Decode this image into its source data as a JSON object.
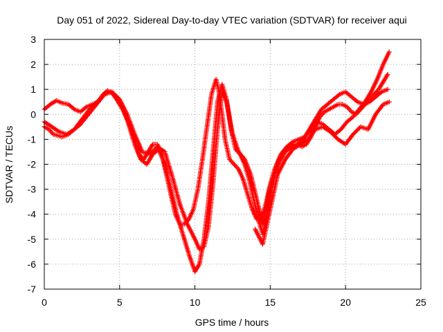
{
  "chart_data": {
    "type": "scatter",
    "title": "Day 051 of 2022, Sidereal Day-to-day VTEC variation (SDTVAR) for receiver aqui",
    "xlabel": "GPS time / hours",
    "ylabel": "SDTVAR / TECUs",
    "xlim": [
      0,
      25
    ],
    "ylim": [
      -7,
      3
    ],
    "xticks": [
      "0",
      "5",
      "10",
      "15",
      "20",
      "25"
    ],
    "yticks": [
      "3",
      "2",
      "1",
      "0",
      "-1",
      "-2",
      "-3",
      "-4",
      "-5",
      "-6",
      "-7"
    ],
    "grid": true,
    "marker": "plus",
    "color": "#ff0000",
    "series": [
      {
        "x": [
          0.0,
          0.3,
          0.6,
          0.9,
          1.2,
          1.6,
          2.0,
          2.4,
          2.8,
          3.2,
          3.6,
          3.9,
          4.2,
          4.5,
          4.8,
          5.2,
          5.6,
          6.0,
          6.3,
          6.6,
          6.9,
          7.2,
          7.5,
          7.8,
          8.1,
          8.4,
          8.7,
          9.0,
          9.3,
          9.6,
          9.9,
          10.2,
          10.5,
          10.8,
          11.1,
          11.4,
          11.6,
          11.8,
          12.0,
          12.3,
          12.6,
          12.9,
          13.2,
          13.5,
          13.8,
          14.1,
          14.4,
          14.7,
          15.0,
          15.3,
          15.6,
          15.9,
          16.2,
          16.5,
          16.8,
          17.1,
          17.4,
          17.7,
          18.0,
          18.3,
          18.6,
          18.9,
          19.2,
          19.5,
          19.8,
          20.1,
          20.4,
          20.7,
          21.0,
          21.3,
          21.6,
          21.9,
          22.2,
          22.5,
          22.8
        ],
        "y": [
          -0.5,
          -0.6,
          -0.8,
          -0.85,
          -0.9,
          -0.8,
          -0.6,
          -0.4,
          -0.1,
          0.2,
          0.5,
          0.8,
          0.95,
          0.85,
          0.6,
          0.2,
          -0.3,
          -1.0,
          -1.6,
          -1.8,
          -1.5,
          -1.2,
          -1.2,
          -1.6,
          -2.4,
          -3.2,
          -4.0,
          -4.4,
          -4.4,
          -4.2,
          -3.8,
          -3.0,
          -1.8,
          -0.5,
          0.8,
          1.4,
          0.9,
          0.0,
          -1.0,
          -1.8,
          -2.0,
          -2.2,
          -2.6,
          -3.2,
          -3.8,
          -4.2,
          -4.2,
          -3.6,
          -2.8,
          -2.2,
          -1.8,
          -1.5,
          -1.3,
          -1.2,
          -1.2,
          -1.3,
          -1.2,
          -0.9,
          -0.5,
          -0.1,
          0.1,
          0.2,
          0.3,
          0.4,
          0.4,
          0.3,
          0.1,
          0.0,
          0.2,
          0.4,
          0.6,
          0.8,
          1.0,
          1.3,
          1.6
        ]
      },
      {
        "x": [
          0.0,
          0.4,
          0.8,
          1.2,
          1.6,
          2.0,
          2.4,
          2.8,
          3.2,
          3.6,
          4.0,
          4.4,
          4.8,
          5.2,
          5.6,
          6.0,
          6.4,
          6.8,
          7.2,
          7.6,
          8.0,
          8.4,
          8.8,
          9.2,
          9.6,
          10.0,
          10.3,
          10.6,
          10.9,
          11.2,
          11.5,
          11.8,
          12.1,
          12.4,
          12.7,
          13.0,
          13.3,
          13.6,
          13.9,
          14.2,
          14.5,
          14.8,
          15.1,
          15.4,
          15.7,
          16.0,
          16.4,
          16.8,
          17.2,
          17.6,
          18.0,
          18.4,
          18.8,
          19.2,
          19.6,
          20.0,
          20.4,
          20.8,
          21.2,
          21.6,
          22.0,
          22.4,
          22.8
        ],
        "y": [
          0.2,
          0.4,
          0.55,
          0.45,
          0.4,
          0.2,
          0.1,
          0.3,
          0.4,
          0.5,
          0.8,
          0.9,
          0.7,
          0.3,
          -0.4,
          -1.2,
          -1.8,
          -2.0,
          -1.6,
          -1.4,
          -2.0,
          -3.0,
          -4.0,
          -4.8,
          -5.6,
          -6.3,
          -6.0,
          -5.0,
          -3.5,
          -1.5,
          0.5,
          1.2,
          0.6,
          -0.6,
          -1.4,
          -1.6,
          -2.0,
          -2.6,
          -3.4,
          -4.2,
          -4.8,
          -4.0,
          -3.0,
          -2.2,
          -1.8,
          -1.5,
          -1.3,
          -1.2,
          -1.0,
          -0.6,
          -0.2,
          0.2,
          0.4,
          0.6,
          0.8,
          0.9,
          0.7,
          0.5,
          0.4,
          0.5,
          0.7,
          0.9,
          1.0
        ]
      },
      {
        "x": [
          0.0,
          0.5,
          1.0,
          1.5,
          2.0,
          2.5,
          3.0,
          3.5,
          4.0,
          4.5,
          5.0,
          5.5,
          6.0,
          6.5,
          7.0,
          7.5,
          8.0,
          8.5,
          9.0,
          9.5,
          10.0,
          10.3,
          10.6,
          10.9,
          11.2,
          11.5,
          11.8,
          12.1,
          12.5,
          12.9,
          13.3,
          13.7,
          14.1,
          14.5,
          14.9,
          15.3,
          15.7,
          16.1,
          16.5,
          16.9,
          17.3,
          17.7,
          18.1,
          18.5,
          18.9,
          19.3,
          19.7,
          20.1,
          20.5,
          20.9,
          21.3,
          21.7,
          22.1,
          22.5,
          22.9
        ],
        "y": [
          -0.3,
          -0.5,
          -0.7,
          -0.8,
          -0.6,
          -0.2,
          0.2,
          0.5,
          0.8,
          0.9,
          0.6,
          0.0,
          -0.8,
          -1.5,
          -1.6,
          -1.3,
          -1.5,
          -2.5,
          -3.6,
          -4.4,
          -5.0,
          -5.4,
          -5.3,
          -4.5,
          -2.8,
          -0.6,
          0.9,
          0.5,
          -0.8,
          -1.5,
          -1.8,
          -2.4,
          -3.4,
          -4.4,
          -3.2,
          -2.2,
          -1.6,
          -1.3,
          -1.1,
          -1.0,
          -0.9,
          -0.6,
          -0.3,
          -0.4,
          -0.6,
          -0.8,
          -0.6,
          -0.3,
          -0.1,
          0.2,
          0.5,
          0.9,
          1.4,
          2.0,
          2.5
        ]
      },
      {
        "x": [
          14.0,
          14.5,
          15.0,
          15.5,
          16.0,
          16.5,
          17.0,
          17.5,
          18.0,
          18.5,
          19.0,
          19.5,
          20.0,
          20.5,
          21.0,
          21.5,
          22.0,
          22.5,
          22.9
        ],
        "y": [
          -4.6,
          -5.2,
          -3.8,
          -2.4,
          -1.8,
          -1.4,
          -1.2,
          -1.0,
          -0.6,
          -0.5,
          -0.7,
          -1.0,
          -1.2,
          -0.8,
          -0.5,
          -0.6,
          0.0,
          0.4,
          0.5
        ]
      }
    ]
  }
}
